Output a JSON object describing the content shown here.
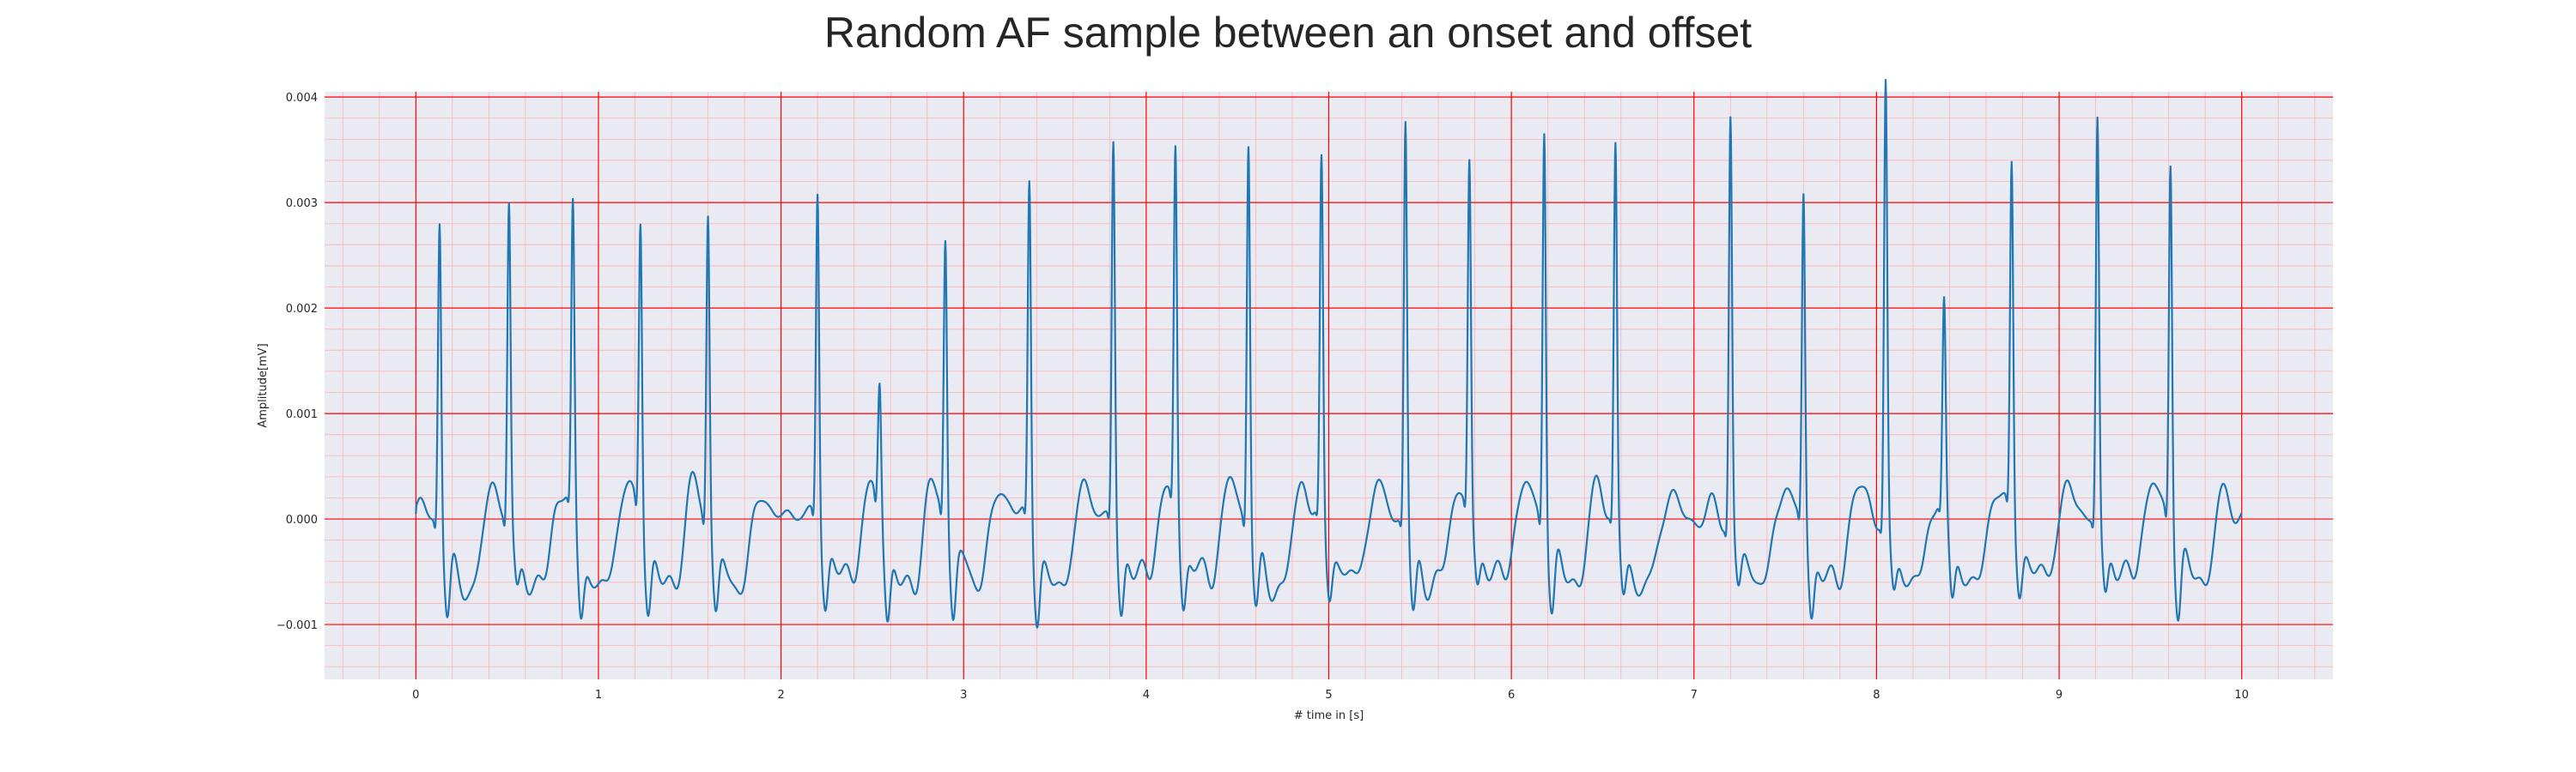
{
  "chart_data": {
    "type": "line",
    "title": "Random AF sample between an onset and offset",
    "xlabel": "# time in [s]",
    "ylabel": "Amplitude[mV]",
    "xlim": [
      -0.5,
      10.5
    ],
    "ylim": [
      -0.00152,
      0.00405
    ],
    "x_ticks": [
      0,
      1,
      2,
      3,
      4,
      5,
      6,
      7,
      8,
      9,
      10
    ],
    "y_ticks": [
      -0.001,
      0.0,
      0.001,
      0.002,
      0.003,
      0.004
    ],
    "y_tick_labels": [
      "−0.001",
      "0.000",
      "0.001",
      "0.002",
      "0.003",
      "0.004"
    ],
    "grid": true,
    "minor_grid": true,
    "legend": "none",
    "colors": {
      "line": "#1f77b4",
      "background": "#eaeaf2",
      "major_grid": "#ff0000",
      "minor_grid": "#ffb3b3"
    },
    "series": [
      {
        "beats": [
          {
            "t": 0.13,
            "amp": 0.00288
          },
          {
            "t": 0.51,
            "amp": 0.00297
          },
          {
            "t": 0.86,
            "amp": 0.00285
          },
          {
            "t": 1.23,
            "amp": 0.00283
          },
          {
            "t": 1.6,
            "amp": 0.00292
          },
          {
            "t": 2.2,
            "amp": 0.00311
          },
          {
            "t": 2.54,
            "amp": 0.00123
          },
          {
            "t": 2.9,
            "amp": 0.00264
          },
          {
            "t": 3.36,
            "amp": 0.00322
          },
          {
            "t": 3.82,
            "amp": 0.00358
          },
          {
            "t": 4.16,
            "amp": 0.00341
          },
          {
            "t": 4.56,
            "amp": 0.00366
          },
          {
            "t": 4.96,
            "amp": 0.00335
          },
          {
            "t": 5.42,
            "amp": 0.0038
          },
          {
            "t": 5.77,
            "amp": 0.0033
          },
          {
            "t": 6.18,
            "amp": 0.0038
          },
          {
            "t": 6.57,
            "amp": 0.0035
          },
          {
            "t": 7.2,
            "amp": 0.00383
          },
          {
            "t": 7.6,
            "amp": 0.00308
          },
          {
            "t": 8.05,
            "amp": 0.00412
          },
          {
            "t": 8.37,
            "amp": 0.00188
          },
          {
            "t": 8.74,
            "amp": 0.0033
          },
          {
            "t": 9.21,
            "amp": 0.0038
          },
          {
            "t": 9.61,
            "amp": 0.00345
          }
        ],
        "t_start": 0.0,
        "t_end": 10.0,
        "baseline_start": 5e-05
      }
    ]
  }
}
